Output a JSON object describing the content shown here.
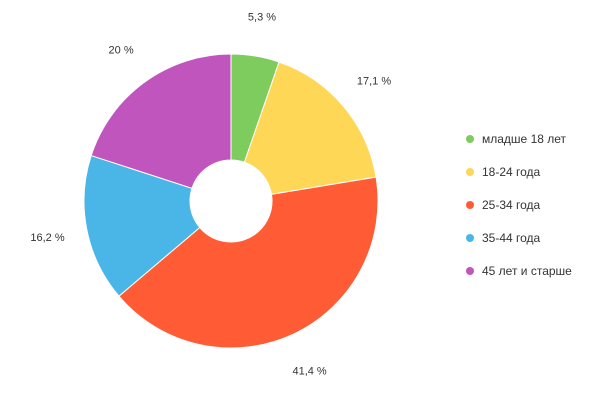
{
  "chart_data": {
    "type": "pie",
    "donut": true,
    "legend_position": "right",
    "slices": [
      {
        "name": "младше 18 лет",
        "value": 5.3,
        "label": "5,3 %",
        "color": "#7dcc5d"
      },
      {
        "name": "18-24 года",
        "value": 17.1,
        "label": "17,1 %",
        "color": "#ffd757"
      },
      {
        "name": "25-34 года",
        "value": 41.4,
        "label": "41,4 %",
        "color": "#ff5b35"
      },
      {
        "name": "35-44 года",
        "value": 16.2,
        "label": "16,2 %",
        "color": "#4ab6e8"
      },
      {
        "name": "45 лет и старше",
        "value": 20,
        "label": "20 %",
        "color": "#bf55bd"
      }
    ]
  }
}
